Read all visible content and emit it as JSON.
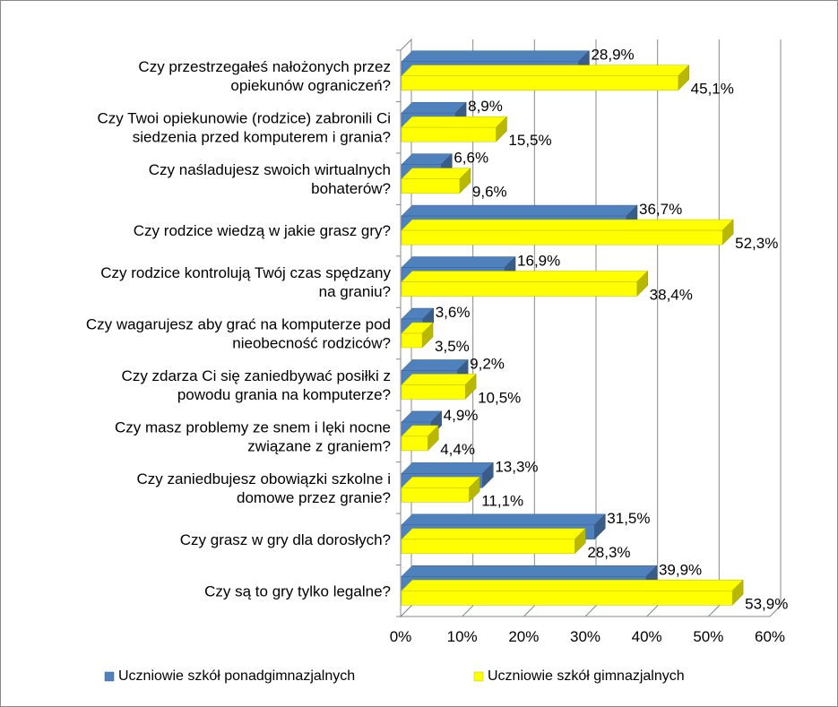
{
  "chart_data": {
    "type": "bar",
    "orientation": "horizontal",
    "style": "3d-clustered",
    "categories": [
      [
        "Czy przestrzegałeś nałożonych przez",
        "opiekunów ograniczeń?"
      ],
      [
        "Czy Twoi opiekunowie (rodzice) zabronili Ci",
        "siedzenia przed komputerem i grania?"
      ],
      [
        "Czy naśladujesz swoich wirtualnych",
        "bohaterów?"
      ],
      [
        "Czy rodzice wiedzą w jakie grasz gry?"
      ],
      [
        "Czy rodzice kontrolują Twój czas spędzany",
        "na graniu?"
      ],
      [
        "Czy wagarujesz aby grać na komputerze pod",
        "nieobecność rodziców?"
      ],
      [
        "Czy zdarza Ci się zaniedbywać posiłki z",
        "powodu grania na komputerze?"
      ],
      [
        "Czy masz problemy ze snem i lęki nocne",
        "związane z graniem?"
      ],
      [
        "Czy zaniedbujesz obowiązki szkolne i",
        "domowe przez granie?"
      ],
      [
        "Czy grasz w gry dla dorosłych?"
      ],
      [
        "Czy są to gry tylko legalne?"
      ]
    ],
    "series": [
      {
        "name": "Uczniowie szkół ponadgimnazjalnych",
        "color": "#4f81bd",
        "values": [
          28.9,
          8.9,
          6.6,
          36.7,
          16.9,
          3.6,
          9.2,
          4.9,
          13.3,
          31.5,
          39.9
        ],
        "labels": [
          "28,9%",
          "8,9%",
          "6,6%",
          "36,7%",
          "16,9%",
          "3,6%",
          "9,2%",
          "4,9%",
          "13,3%",
          "31,5%",
          "39,9%"
        ]
      },
      {
        "name": "Uczniowie szkół gimnazjalnych",
        "color": "#ffff00",
        "values": [
          45.1,
          15.5,
          9.6,
          52.3,
          38.4,
          3.5,
          10.5,
          4.4,
          11.1,
          28.3,
          53.9
        ],
        "labels": [
          "45,1%",
          "15,5%",
          "9,6%",
          "52,3%",
          "38,4%",
          "3,5%",
          "10,5%",
          "4,4%",
          "11,1%",
          "28,3%",
          "53,9%"
        ]
      }
    ],
    "xlim": [
      0,
      60
    ],
    "xticks": [
      0,
      10,
      20,
      30,
      40,
      50,
      60
    ],
    "xtick_labels": [
      "0%",
      "10%",
      "20%",
      "30%",
      "40%",
      "50%",
      "60%"
    ],
    "grid": true,
    "legend_position": "bottom"
  }
}
